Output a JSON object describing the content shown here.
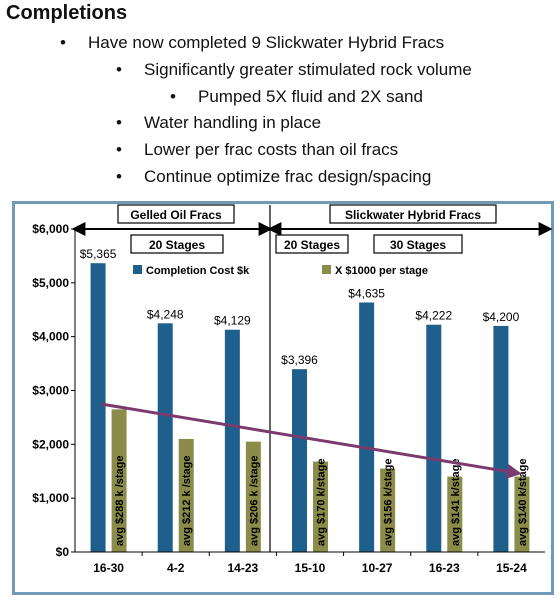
{
  "slide": {
    "heading": "Completions",
    "bullets": [
      {
        "text": "Have now completed 9 Slickwater Hybrid Fracs",
        "level": 1
      },
      {
        "text": "Significantly greater stimulated rock volume",
        "level": 2
      },
      {
        "text": "Pumped 5X fluid and 2X sand",
        "level": 3
      },
      {
        "text": "Water handling in place",
        "level": 2
      },
      {
        "text": "Lower per frac costs than oil fracs",
        "level": 2
      },
      {
        "text": "Continue optimize frac design/spacing",
        "level": 2
      }
    ]
  },
  "chart_data": {
    "type": "bar",
    "categories": [
      "16-30",
      "4-2",
      "14-23",
      "15-10",
      "10-27",
      "16-23",
      "15-24"
    ],
    "ylim": [
      0,
      6000
    ],
    "yticks": [
      "$0",
      "$1,000",
      "$2,000",
      "$3,000",
      "$4,000",
      "$5,000",
      "$6,000"
    ],
    "series": [
      {
        "name": "Completion Cost $k",
        "color": "#1f5f8b",
        "values": [
          5365,
          4248,
          4129,
          3396,
          4635,
          4222,
          4200
        ],
        "labels": [
          "$5,365",
          "$4,248",
          "$4,129",
          "$3,396",
          "$4,635",
          "$4,222",
          "$4,200"
        ]
      },
      {
        "name": "X $1000 per stage",
        "color": "#8c8c4a",
        "values": [
          2650,
          2100,
          2050,
          1680,
          1550,
          1400,
          1400
        ],
        "labels": [
          "avg $288 k /stage",
          "avg $212 k /stage",
          "avg $206 k /stage",
          "avg $170 k/stage",
          "avg $156 k/stage",
          "avg $141 k/stage",
          "avg $140 k/stage"
        ]
      }
    ],
    "trend": {
      "color": "#7b3a6e",
      "from": 2750,
      "to": 1460
    },
    "annotations": {
      "gelled": "Gelled Oil Fracs",
      "slickwater": "Slickwater Hybrid Fracs",
      "stages_a": "20 Stages",
      "stages_b": "20 Stages",
      "stages_c": "30 Stages"
    }
  }
}
